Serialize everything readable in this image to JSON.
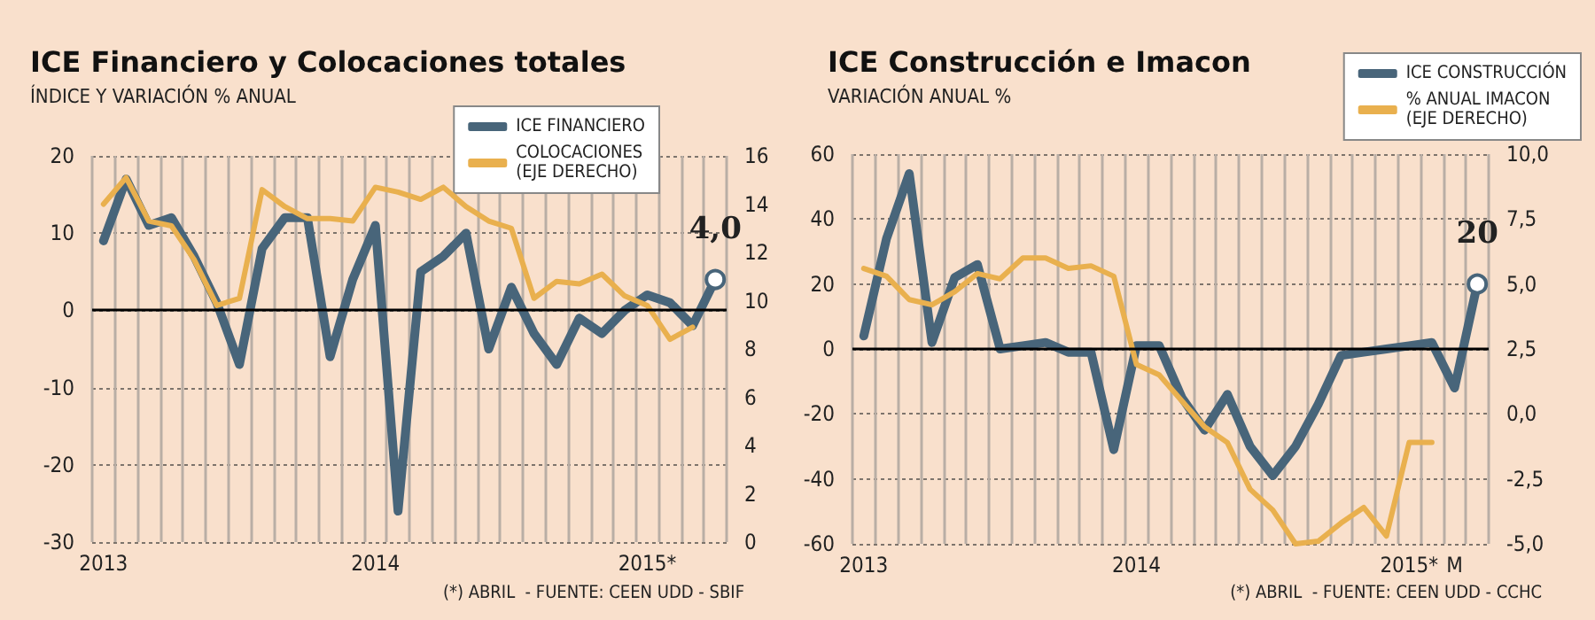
{
  "chart_data": [
    {
      "type": "line",
      "title": "ICE Financiero y Colocaciones totales",
      "subtitle": "ÍNDICE Y VARIACIÓN % ANUAL",
      "categories": [
        "2013",
        null,
        null,
        null,
        null,
        null,
        null,
        null,
        null,
        null,
        null,
        null,
        "2014",
        null,
        null,
        null,
        null,
        null,
        null,
        null,
        null,
        null,
        null,
        null,
        "2015*",
        null,
        null,
        null
      ],
      "series": [
        {
          "name": "ICE FINANCIERO",
          "color": "#48657a",
          "values": [
            9,
            17,
            11,
            12,
            7,
            1,
            -7,
            8,
            12,
            12,
            -6,
            4,
            11,
            -26,
            5,
            7,
            10,
            -5,
            3,
            -3,
            -7,
            -1,
            -3,
            0,
            2,
            1,
            -2,
            4
          ],
          "value_labels": [
            null,
            null,
            null,
            null,
            null,
            null,
            null,
            null,
            null,
            null,
            null,
            null,
            null,
            null,
            null,
            null,
            null,
            null,
            null,
            null,
            null,
            null,
            null,
            null,
            null,
            null,
            null,
            "4,0"
          ]
        },
        {
          "name": "COLOCACIONES\n(EJE DERECHO)",
          "color": "#e9b04e",
          "axis": "y2",
          "values": [
            14.0,
            15.1,
            13.3,
            13.1,
            11.7,
            9.8,
            10.1,
            14.6,
            13.9,
            13.4,
            13.4,
            13.3,
            14.7,
            14.5,
            14.2,
            14.7,
            13.9,
            13.3,
            13.0,
            10.1,
            10.8,
            10.7,
            11.1,
            10.2,
            9.8,
            8.4,
            8.9,
            null
          ]
        }
      ],
      "ylim": [
        -30,
        20
      ],
      "yticks": [
        -30,
        -20,
        -10,
        0,
        10,
        20
      ],
      "y2lim": [
        0,
        16
      ],
      "y2ticks": [
        0,
        2,
        4,
        6,
        8,
        10,
        12,
        14,
        16
      ],
      "ref_lines": [
        {
          "axis": "y",
          "value": 0,
          "color": "#000000"
        }
      ],
      "grid": true,
      "legend": "top right",
      "marker": "none",
      "annotations": [
        "(*) ABRIL  - FUENTE: CEEN UDD - SBIF"
      ]
    },
    {
      "type": "line",
      "title": "ICE Construcción e Imacon",
      "subtitle": "VARIACIÓN ANUAL %",
      "categories": [
        "2013",
        null,
        null,
        null,
        null,
        null,
        null,
        null,
        null,
        null,
        null,
        null,
        "2014",
        null,
        null,
        null,
        null,
        null,
        null,
        null,
        null,
        null,
        null,
        null,
        "2015*",
        null,
        "M",
        null
      ],
      "series": [
        {
          "name": "ICE CONSTRUCCIÓN",
          "color": "#48657a",
          "values": [
            4,
            34,
            54,
            2,
            22,
            26,
            0,
            1,
            2,
            -1,
            -1,
            -31,
            1,
            1,
            -15,
            -25,
            -14,
            -30,
            -39,
            -30,
            -17,
            -2,
            -1,
            0,
            1,
            2,
            -12,
            20
          ],
          "value_labels": [
            null,
            null,
            null,
            null,
            null,
            null,
            null,
            null,
            null,
            null,
            null,
            null,
            null,
            null,
            null,
            null,
            null,
            null,
            null,
            null,
            null,
            null,
            null,
            null,
            null,
            null,
            null,
            "20"
          ]
        },
        {
          "name": "% ANUAL IMACON\n(EJE DERECHO)",
          "color": "#e9b04e",
          "axis": "y2",
          "values": [
            5.6,
            5.3,
            4.4,
            4.2,
            4.7,
            5.4,
            5.2,
            6.0,
            6.0,
            5.6,
            5.7,
            5.3,
            1.9,
            1.5,
            0.5,
            -0.5,
            -1.1,
            -2.9,
            -3.7,
            -5.0,
            -4.9,
            -4.2,
            -3.6,
            -4.7,
            -1.1,
            -1.1,
            null,
            null
          ]
        }
      ],
      "ylim": [
        -60,
        60
      ],
      "yticks": [
        -60,
        -40,
        -20,
        0,
        20,
        40,
        60
      ],
      "y2lim": [
        -5,
        10
      ],
      "y2ticks": [
        {
          "value": -5,
          "label": "-5,0"
        },
        {
          "value": -2.5,
          "label": "-2,5"
        },
        {
          "value": 0,
          "label": "0,0"
        },
        {
          "value": 2.5,
          "label": "2,5"
        },
        {
          "value": 5,
          "label": "5,0"
        },
        {
          "value": 7.5,
          "label": "7,5"
        },
        {
          "value": 10,
          "label": "10,0"
        }
      ],
      "ref_lines": [
        {
          "axis": "y",
          "value": 0,
          "color": "#000000"
        }
      ],
      "grid": true,
      "legend": "top right",
      "marker": "none",
      "annotations": [
        "(*) ABRIL  - FUENTE: CEEN UDD - CCHC"
      ]
    }
  ]
}
